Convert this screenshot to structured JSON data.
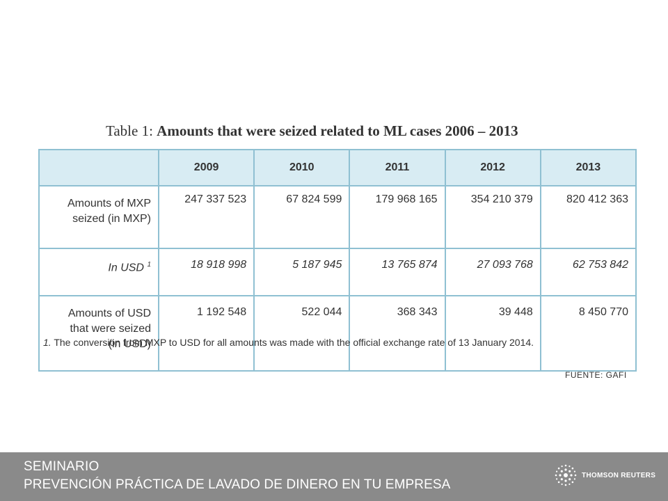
{
  "table": {
    "title_prefix": "Table 1: ",
    "title_bold": "Amounts that were seized related to ML cases 2006 – 2013",
    "years": [
      "2009",
      "2010",
      "2011",
      "2012",
      "2013"
    ],
    "rows": [
      {
        "label_line1": "Amounts of MXP",
        "label_line2": "seized (in MXP)",
        "values": [
          "247 337 523",
          "67 824 599",
          "179 968 165",
          "354 210 379",
          "820 412 363"
        ]
      },
      {
        "label": "In USD",
        "sup": "1",
        "values": [
          "18 918 998",
          "5 187 945",
          "13 765 874",
          "27 093 768",
          "62 753 842"
        ]
      },
      {
        "label_line1": "Amounts of USD",
        "label_line2": "that were seized",
        "label_line3": "(in USD)",
        "values": [
          "1 192 548",
          "522 044",
          "368 343",
          "39 448",
          "8 450 770"
        ]
      }
    ],
    "footnote_num": "1.",
    "footnote_text": "The conversion from MXP to USD for all amounts was made with the official exchange rate of 13 January 2014."
  },
  "source": "FUENTE: GAFI",
  "footer": {
    "line1": "SEMINARIO",
    "line2": "PREVENCIÓN PRÁCTICA DE LAVADO DE DINERO EN TU EMPRESA",
    "brand": "THOMSON REUTERS",
    "brand_icon": "thomson-reuters-logo-icon"
  },
  "colors": {
    "header_fill": "#d8ecf3",
    "border": "#8fc0d2",
    "footer_bg": "#8a8a8a"
  }
}
